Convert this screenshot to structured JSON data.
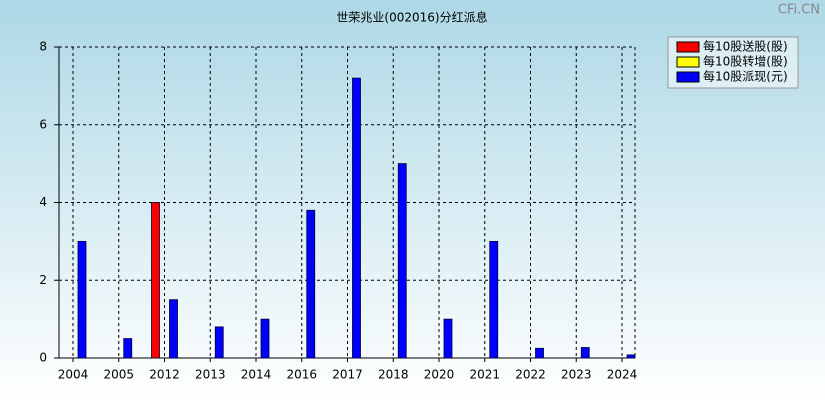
{
  "chart_data": {
    "type": "bar",
    "title": "世荣兆业(002016)分红派息",
    "watermark": "CFi.CN",
    "categories": [
      "2004",
      "2005",
      "2012",
      "2013",
      "2014",
      "2016",
      "2017",
      "2018",
      "2020",
      "2021",
      "2022",
      "2023",
      "2024"
    ],
    "series": [
      {
        "name": "每10股送股(股)",
        "color": "#ff0000",
        "values": [
          null,
          null,
          4,
          null,
          null,
          null,
          null,
          null,
          null,
          null,
          null,
          null,
          null
        ]
      },
      {
        "name": "每10股转增(股)",
        "color": "#ffff00",
        "values": [
          null,
          null,
          null,
          null,
          null,
          null,
          null,
          null,
          null,
          null,
          null,
          null,
          null
        ]
      },
      {
        "name": "每10股派现(元)",
        "color": "#0000ff",
        "values": [
          3,
          0.5,
          1.5,
          0.8,
          1,
          3.8,
          7.2,
          5,
          1,
          3,
          0.25,
          0.27,
          0.08
        ]
      }
    ],
    "ylim": [
      0,
      8
    ],
    "yticks": [
      0,
      2,
      4,
      6,
      8
    ],
    "grid": true,
    "legend": "top-right"
  }
}
